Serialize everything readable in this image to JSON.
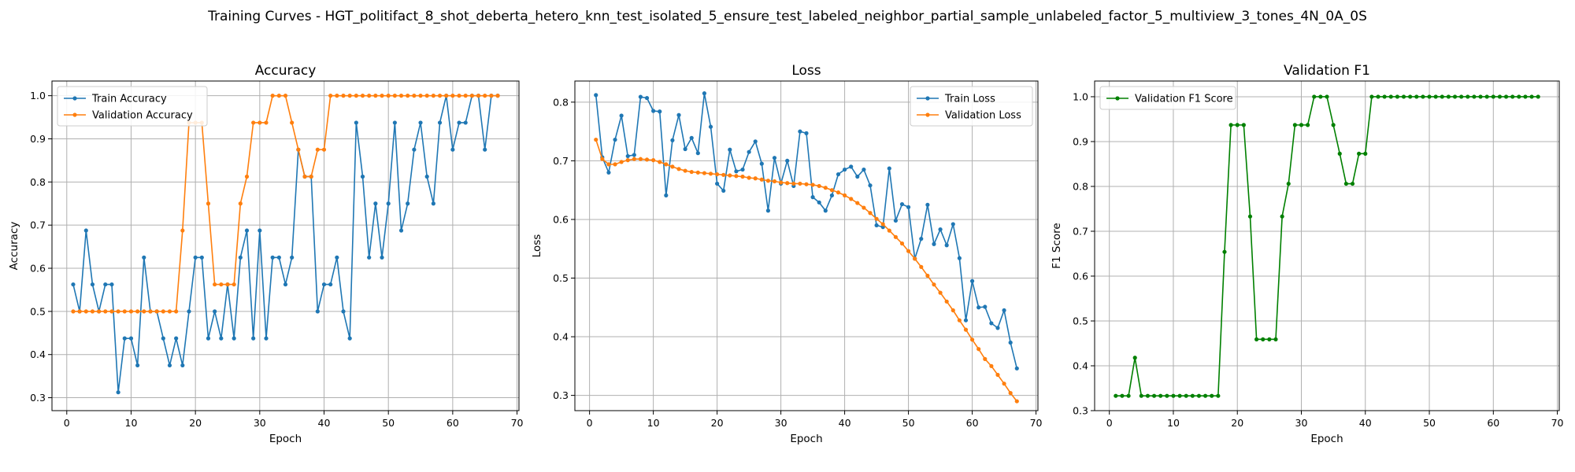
{
  "figure": {
    "title": "Training Curves - HGT_politifact_8_shot_deberta_hetero_knn_test_isolated_5_ensure_test_labeled_neighbor_partial_sample_unlabeled_factor_5_multiview_3_tones_4N_0A_0S"
  },
  "chart_data": [
    {
      "type": "line",
      "title": "Accuracy",
      "xlabel": "Epoch",
      "ylabel": "Accuracy",
      "xlim": [
        -2.3,
        70.3
      ],
      "ylim": [
        0.27,
        1.034
      ],
      "xticks": [
        0,
        10,
        20,
        30,
        40,
        50,
        60,
        70
      ],
      "yticks": [
        0.3,
        0.4,
        0.5,
        0.6,
        0.7,
        0.8,
        0.9,
        1.0
      ],
      "tick_labels_y": [
        "0.3",
        "0.4",
        "0.5",
        "0.6",
        "0.7",
        "0.8",
        "0.9",
        "1.0"
      ],
      "grid": true,
      "legend": "upper-left",
      "series": [
        {
          "name": "Train Accuracy",
          "color": "#1f77b4",
          "values": [
            0.5625,
            0.5,
            0.6875,
            0.5625,
            0.5,
            0.5625,
            0.5625,
            0.3125,
            0.4375,
            0.4375,
            0.375,
            0.625,
            0.5,
            0.5,
            0.4375,
            0.375,
            0.4375,
            0.375,
            0.5,
            0.625,
            0.625,
            0.4375,
            0.5,
            0.4375,
            0.5625,
            0.4375,
            0.625,
            0.6875,
            0.4375,
            0.6875,
            0.4375,
            0.625,
            0.625,
            0.5625,
            0.625,
            0.875,
            0.8125,
            0.8125,
            0.5,
            0.5625,
            0.5625,
            0.625,
            0.5,
            0.4375,
            0.9375,
            0.8125,
            0.625,
            0.75,
            0.625,
            0.75,
            0.9375,
            0.6875,
            0.75,
            0.875,
            0.9375,
            0.8125,
            0.75,
            0.9375,
            1.0,
            0.875,
            0.9375,
            0.9375,
            1.0,
            1.0,
            0.875,
            1.0,
            1.0
          ]
        },
        {
          "name": "Validation Accuracy",
          "color": "#ff7f0e",
          "values": [
            0.5,
            0.5,
            0.5,
            0.5,
            0.5,
            0.5,
            0.5,
            0.5,
            0.5,
            0.5,
            0.5,
            0.5,
            0.5,
            0.5,
            0.5,
            0.5,
            0.5,
            0.6875,
            0.9375,
            0.9375,
            0.9375,
            0.75,
            0.5625,
            0.5625,
            0.5625,
            0.5625,
            0.75,
            0.8125,
            0.9375,
            0.9375,
            0.9375,
            1.0,
            1.0,
            1.0,
            0.9375,
            0.875,
            0.8125,
            0.8125,
            0.875,
            0.875,
            1.0,
            1.0,
            1.0,
            1.0,
            1.0,
            1.0,
            1.0,
            1.0,
            1.0,
            1.0,
            1.0,
            1.0,
            1.0,
            1.0,
            1.0,
            1.0,
            1.0,
            1.0,
            1.0,
            1.0,
            1.0,
            1.0,
            1.0,
            1.0,
            1.0,
            1.0,
            1.0
          ]
        }
      ]
    },
    {
      "type": "line",
      "title": "Loss",
      "xlabel": "Epoch",
      "ylabel": "Loss",
      "xlim": [
        -2.3,
        70.3
      ],
      "ylim": [
        0.274,
        0.836
      ],
      "xticks": [
        0,
        10,
        20,
        30,
        40,
        50,
        60,
        70
      ],
      "yticks": [
        0.3,
        0.4,
        0.5,
        0.6,
        0.7,
        0.8
      ],
      "tick_labels_y": [
        "0.3",
        "0.4",
        "0.5",
        "0.6",
        "0.7",
        "0.8"
      ],
      "grid": true,
      "legend": "upper-right",
      "series": [
        {
          "name": "Train Loss",
          "color": "#1f77b4",
          "values": [
            0.812,
            0.706,
            0.68,
            0.736,
            0.777,
            0.708,
            0.71,
            0.809,
            0.807,
            0.785,
            0.784,
            0.641,
            0.735,
            0.778,
            0.72,
            0.739,
            0.713,
            0.815,
            0.758,
            0.661,
            0.649,
            0.719,
            0.682,
            0.685,
            0.715,
            0.733,
            0.695,
            0.615,
            0.705,
            0.661,
            0.7,
            0.657,
            0.75,
            0.747,
            0.638,
            0.629,
            0.615,
            0.641,
            0.677,
            0.685,
            0.69,
            0.673,
            0.685,
            0.658,
            0.59,
            0.587,
            0.687,
            0.598,
            0.626,
            0.621,
            0.533,
            0.567,
            0.625,
            0.558,
            0.583,
            0.556,
            0.592,
            0.534,
            0.428,
            0.495,
            0.45,
            0.451,
            0.423,
            0.415,
            0.445,
            0.39,
            0.346
          ]
        },
        {
          "name": "Validation Loss",
          "color": "#ff7f0e",
          "values": [
            0.736,
            0.703,
            0.694,
            0.694,
            0.698,
            0.701,
            0.703,
            0.703,
            0.702,
            0.701,
            0.698,
            0.694,
            0.69,
            0.686,
            0.683,
            0.681,
            0.68,
            0.679,
            0.678,
            0.677,
            0.676,
            0.675,
            0.674,
            0.673,
            0.671,
            0.67,
            0.668,
            0.666,
            0.665,
            0.663,
            0.662,
            0.661,
            0.661,
            0.66,
            0.659,
            0.657,
            0.654,
            0.65,
            0.646,
            0.641,
            0.635,
            0.628,
            0.62,
            0.611,
            0.601,
            0.592,
            0.581,
            0.57,
            0.559,
            0.546,
            0.533,
            0.519,
            0.504,
            0.489,
            0.475,
            0.46,
            0.445,
            0.428,
            0.412,
            0.395,
            0.379,
            0.362,
            0.35,
            0.335,
            0.32,
            0.304,
            0.29
          ]
        }
      ]
    },
    {
      "type": "line",
      "title": "Validation F1",
      "xlabel": "Epoch",
      "ylabel": "F1 Score",
      "xlim": [
        -2.3,
        70.3
      ],
      "ylim": [
        0.3,
        1.035
      ],
      "xticks": [
        0,
        10,
        20,
        30,
        40,
        50,
        60,
        70
      ],
      "yticks": [
        0.3,
        0.4,
        0.5,
        0.6,
        0.7,
        0.8,
        0.9,
        1.0
      ],
      "tick_labels_y": [
        "0.3",
        "0.4",
        "0.5",
        "0.6",
        "0.7",
        "0.8",
        "0.9",
        "1.0"
      ],
      "grid": true,
      "legend": "upper-left",
      "series": [
        {
          "name": "Validation F1 Score",
          "color": "#008000",
          "values": [
            0.333,
            0.333,
            0.333,
            0.418,
            0.333,
            0.333,
            0.333,
            0.333,
            0.333,
            0.333,
            0.333,
            0.333,
            0.333,
            0.333,
            0.333,
            0.333,
            0.333,
            0.654,
            0.937,
            0.937,
            0.937,
            0.733,
            0.459,
            0.459,
            0.459,
            0.459,
            0.733,
            0.806,
            0.937,
            0.937,
            0.937,
            1.0,
            1.0,
            1.0,
            0.937,
            0.873,
            0.806,
            0.806,
            0.873,
            0.873,
            1.0,
            1.0,
            1.0,
            1.0,
            1.0,
            1.0,
            1.0,
            1.0,
            1.0,
            1.0,
            1.0,
            1.0,
            1.0,
            1.0,
            1.0,
            1.0,
            1.0,
            1.0,
            1.0,
            1.0,
            1.0,
            1.0,
            1.0,
            1.0,
            1.0,
            1.0,
            1.0
          ]
        }
      ]
    }
  ]
}
